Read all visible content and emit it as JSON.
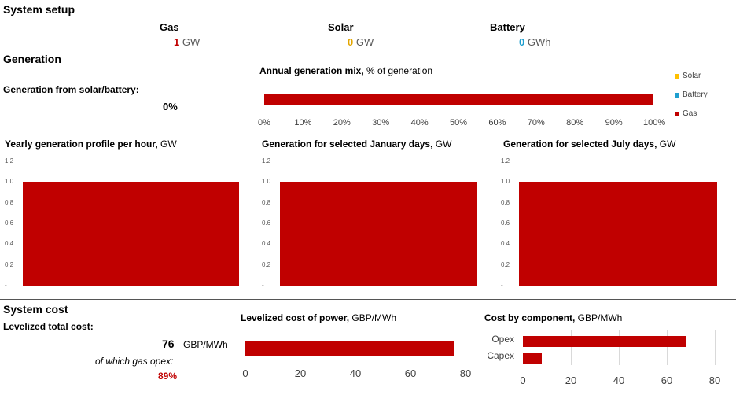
{
  "setup": {
    "title": "System setup",
    "gas": {
      "label": "Gas",
      "value": "1",
      "unit": "GW"
    },
    "solar": {
      "label": "Solar",
      "value": "0",
      "unit": "GW"
    },
    "battery": {
      "label": "Battery",
      "value": "0",
      "unit": "GWh"
    }
  },
  "generation": {
    "title": "Generation",
    "share_label": "Generation from solar/battery:",
    "share_value": "0%",
    "mix_title_bold": "Annual generation mix,",
    "mix_title_rest": " % of generation",
    "mix_ticks": [
      "0%",
      "10%",
      "20%",
      "30%",
      "40%",
      "50%",
      "60%",
      "70%",
      "80%",
      "90%",
      "100%"
    ],
    "legend": [
      {
        "name": "Solar",
        "color": "#ffc000"
      },
      {
        "name": "Battery",
        "color": "#1f9fcf"
      },
      {
        "name": "Gas",
        "color": "#c00000"
      }
    ],
    "profile_ticks": [
      "1.2",
      "1.0",
      "0.8",
      "0.6",
      "0.4",
      "0.2",
      "-"
    ],
    "charts": [
      {
        "title_bold": "Yearly generation profile per hour,",
        "title_rest": " GW"
      },
      {
        "title_bold": "Generation for selected January days,",
        "title_rest": " GW"
      },
      {
        "title_bold": "Generation for selected July days,",
        "title_rest": " GW"
      }
    ]
  },
  "cost": {
    "title": "System cost",
    "total_label": "Levelized total cost:",
    "total_value": "76",
    "total_unit": "GBP/MWh",
    "opex_label": "of which gas opex:",
    "opex_value": "89%",
    "lcop_title_bold": "Levelized cost of power,",
    "lcop_title_rest": " GBP/MWh",
    "lcop_ticks": [
      "0",
      "20",
      "40",
      "60",
      "80"
    ],
    "comp_title_bold": "Cost by component,",
    "comp_title_rest": " GBP/MWh",
    "comp_ticks": [
      "0",
      "20",
      "40",
      "60",
      "80"
    ],
    "comp_categories": [
      "Opex",
      "Capex"
    ]
  },
  "colors": {
    "gas": "#c00000",
    "solar": "#e3a600",
    "battery": "#1f9fcf"
  },
  "chart_data": [
    {
      "type": "bar",
      "orientation": "horizontal",
      "title": "Annual generation mix, % of generation",
      "series": [
        {
          "name": "Solar",
          "values": [
            0
          ]
        },
        {
          "name": "Battery",
          "values": [
            0
          ]
        },
        {
          "name": "Gas",
          "values": [
            100
          ]
        }
      ],
      "xlim": [
        0,
        100
      ]
    },
    {
      "type": "area",
      "title": "Yearly generation profile per hour, GW",
      "ylim": [
        0,
        1.2
      ],
      "series": [
        {
          "values": [
            1.0
          ]
        }
      ]
    },
    {
      "type": "area",
      "title": "Generation for selected January days, GW",
      "ylim": [
        0,
        1.2
      ],
      "series": [
        {
          "values": [
            1.0
          ]
        }
      ]
    },
    {
      "type": "area",
      "title": "Generation for selected July days, GW",
      "ylim": [
        0,
        1.2
      ],
      "series": [
        {
          "values": [
            1.0
          ]
        }
      ]
    },
    {
      "type": "bar",
      "orientation": "horizontal",
      "title": "Levelized cost of power, GBP/MWh",
      "categories": [
        ""
      ],
      "values": [
        76
      ],
      "xlim": [
        0,
        80
      ]
    },
    {
      "type": "bar",
      "orientation": "horizontal",
      "title": "Cost by component, GBP/MWh",
      "categories": [
        "Opex",
        "Capex"
      ],
      "values": [
        68,
        8
      ],
      "xlim": [
        0,
        80
      ]
    }
  ]
}
